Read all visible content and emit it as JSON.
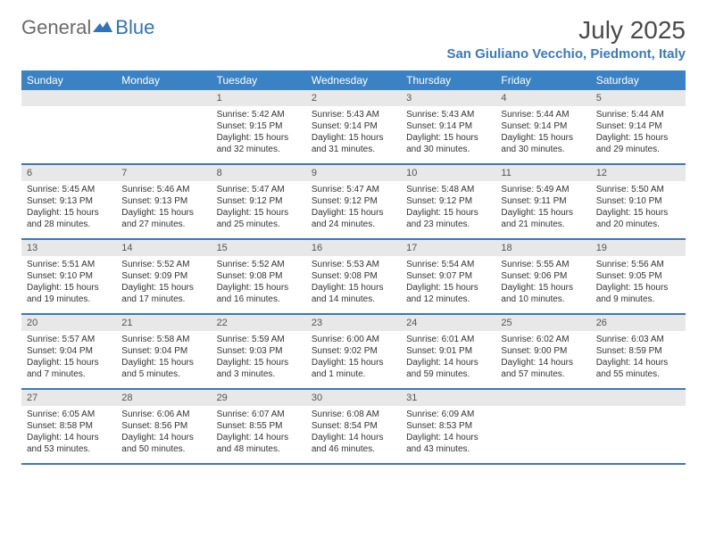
{
  "brand": {
    "part1": "General",
    "part2": "Blue"
  },
  "title": "July 2025",
  "location": "San Giuliano Vecchio, Piedmont, Italy",
  "colors": {
    "header_bg": "#3b82c4",
    "accent": "#3b78bc",
    "daynum_bg": "#e8e8e8",
    "text": "#333333",
    "logo_gray": "#6a6a6a"
  },
  "day_names": [
    "Sunday",
    "Monday",
    "Tuesday",
    "Wednesday",
    "Thursday",
    "Friday",
    "Saturday"
  ],
  "weeks": [
    [
      null,
      null,
      {
        "n": "1",
        "sunrise": "5:42 AM",
        "sunset": "9:15 PM",
        "daylight": "15 hours and 32 minutes."
      },
      {
        "n": "2",
        "sunrise": "5:43 AM",
        "sunset": "9:14 PM",
        "daylight": "15 hours and 31 minutes."
      },
      {
        "n": "3",
        "sunrise": "5:43 AM",
        "sunset": "9:14 PM",
        "daylight": "15 hours and 30 minutes."
      },
      {
        "n": "4",
        "sunrise": "5:44 AM",
        "sunset": "9:14 PM",
        "daylight": "15 hours and 30 minutes."
      },
      {
        "n": "5",
        "sunrise": "5:44 AM",
        "sunset": "9:14 PM",
        "daylight": "15 hours and 29 minutes."
      }
    ],
    [
      {
        "n": "6",
        "sunrise": "5:45 AM",
        "sunset": "9:13 PM",
        "daylight": "15 hours and 28 minutes."
      },
      {
        "n": "7",
        "sunrise": "5:46 AM",
        "sunset": "9:13 PM",
        "daylight": "15 hours and 27 minutes."
      },
      {
        "n": "8",
        "sunrise": "5:47 AM",
        "sunset": "9:12 PM",
        "daylight": "15 hours and 25 minutes."
      },
      {
        "n": "9",
        "sunrise": "5:47 AM",
        "sunset": "9:12 PM",
        "daylight": "15 hours and 24 minutes."
      },
      {
        "n": "10",
        "sunrise": "5:48 AM",
        "sunset": "9:12 PM",
        "daylight": "15 hours and 23 minutes."
      },
      {
        "n": "11",
        "sunrise": "5:49 AM",
        "sunset": "9:11 PM",
        "daylight": "15 hours and 21 minutes."
      },
      {
        "n": "12",
        "sunrise": "5:50 AM",
        "sunset": "9:10 PM",
        "daylight": "15 hours and 20 minutes."
      }
    ],
    [
      {
        "n": "13",
        "sunrise": "5:51 AM",
        "sunset": "9:10 PM",
        "daylight": "15 hours and 19 minutes."
      },
      {
        "n": "14",
        "sunrise": "5:52 AM",
        "sunset": "9:09 PM",
        "daylight": "15 hours and 17 minutes."
      },
      {
        "n": "15",
        "sunrise": "5:52 AM",
        "sunset": "9:08 PM",
        "daylight": "15 hours and 16 minutes."
      },
      {
        "n": "16",
        "sunrise": "5:53 AM",
        "sunset": "9:08 PM",
        "daylight": "15 hours and 14 minutes."
      },
      {
        "n": "17",
        "sunrise": "5:54 AM",
        "sunset": "9:07 PM",
        "daylight": "15 hours and 12 minutes."
      },
      {
        "n": "18",
        "sunrise": "5:55 AM",
        "sunset": "9:06 PM",
        "daylight": "15 hours and 10 minutes."
      },
      {
        "n": "19",
        "sunrise": "5:56 AM",
        "sunset": "9:05 PM",
        "daylight": "15 hours and 9 minutes."
      }
    ],
    [
      {
        "n": "20",
        "sunrise": "5:57 AM",
        "sunset": "9:04 PM",
        "daylight": "15 hours and 7 minutes."
      },
      {
        "n": "21",
        "sunrise": "5:58 AM",
        "sunset": "9:04 PM",
        "daylight": "15 hours and 5 minutes."
      },
      {
        "n": "22",
        "sunrise": "5:59 AM",
        "sunset": "9:03 PM",
        "daylight": "15 hours and 3 minutes."
      },
      {
        "n": "23",
        "sunrise": "6:00 AM",
        "sunset": "9:02 PM",
        "daylight": "15 hours and 1 minute."
      },
      {
        "n": "24",
        "sunrise": "6:01 AM",
        "sunset": "9:01 PM",
        "daylight": "14 hours and 59 minutes."
      },
      {
        "n": "25",
        "sunrise": "6:02 AM",
        "sunset": "9:00 PM",
        "daylight": "14 hours and 57 minutes."
      },
      {
        "n": "26",
        "sunrise": "6:03 AM",
        "sunset": "8:59 PM",
        "daylight": "14 hours and 55 minutes."
      }
    ],
    [
      {
        "n": "27",
        "sunrise": "6:05 AM",
        "sunset": "8:58 PM",
        "daylight": "14 hours and 53 minutes."
      },
      {
        "n": "28",
        "sunrise": "6:06 AM",
        "sunset": "8:56 PM",
        "daylight": "14 hours and 50 minutes."
      },
      {
        "n": "29",
        "sunrise": "6:07 AM",
        "sunset": "8:55 PM",
        "daylight": "14 hours and 48 minutes."
      },
      {
        "n": "30",
        "sunrise": "6:08 AM",
        "sunset": "8:54 PM",
        "daylight": "14 hours and 46 minutes."
      },
      {
        "n": "31",
        "sunrise": "6:09 AM",
        "sunset": "8:53 PM",
        "daylight": "14 hours and 43 minutes."
      },
      null,
      null
    ]
  ],
  "labels": {
    "sunrise": "Sunrise:",
    "sunset": "Sunset:",
    "daylight": "Daylight:"
  }
}
